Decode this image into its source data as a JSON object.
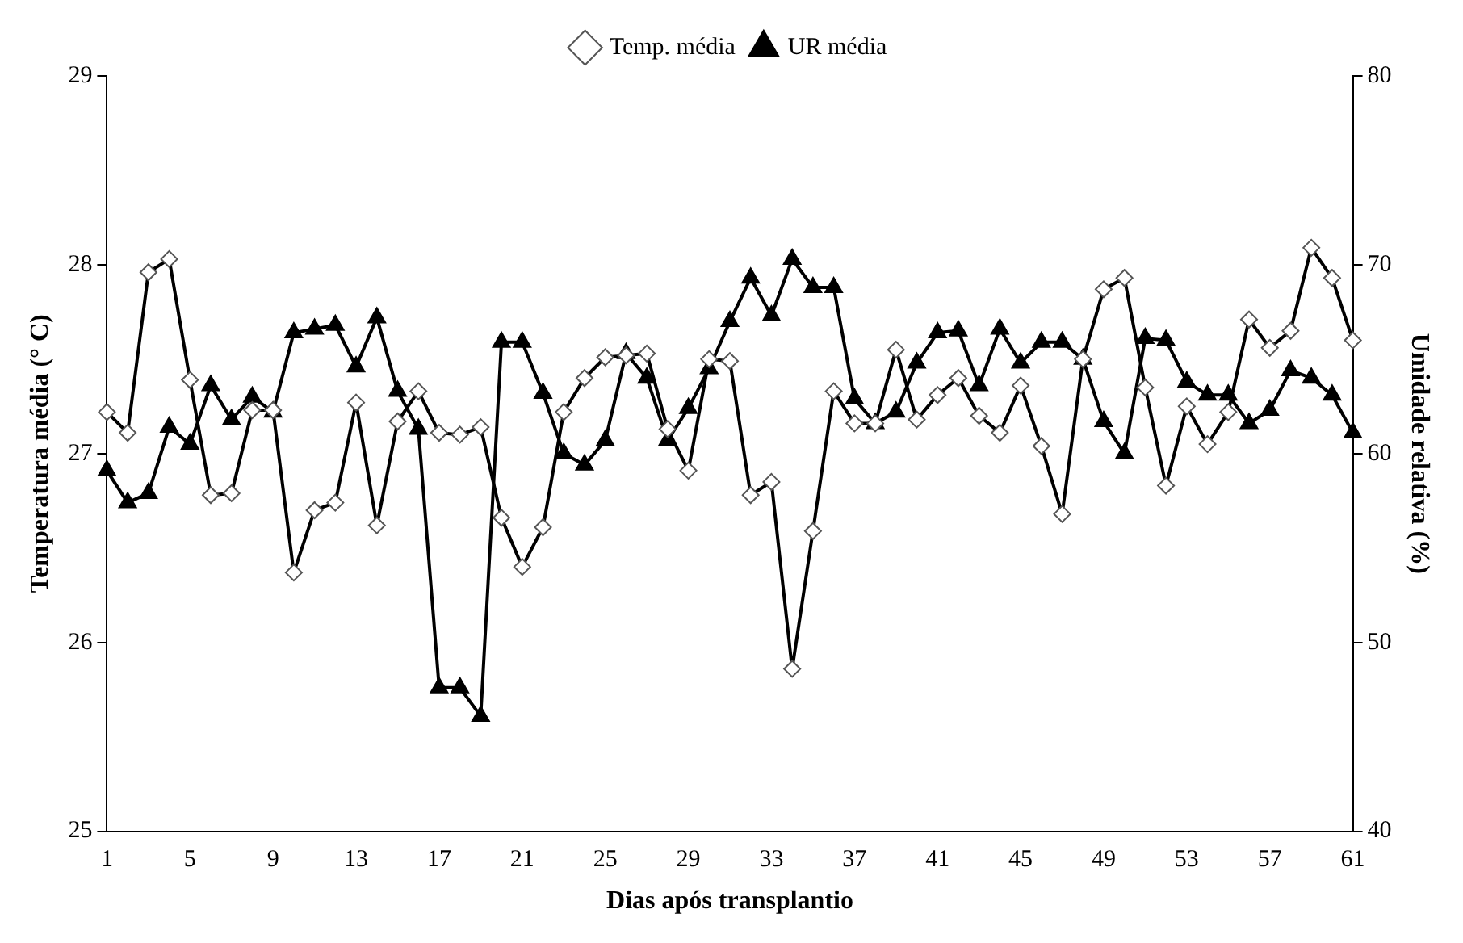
{
  "chart_data": {
    "type": "line",
    "xlabel": "Dias após transplantio",
    "ylabel": "Temperatura média (° C)",
    "y2label": "Umidade relativa (%)",
    "categories": [
      "1",
      null,
      null,
      null,
      "5",
      null,
      null,
      null,
      "9",
      null,
      null,
      null,
      "13",
      null,
      null,
      null,
      "17",
      null,
      null,
      null,
      "21",
      null,
      null,
      null,
      "25",
      null,
      null,
      null,
      "29",
      null,
      null,
      null,
      "33",
      null,
      null,
      null,
      "37",
      null,
      null,
      null,
      "41",
      null,
      null,
      null,
      "45",
      null,
      null,
      null,
      "49",
      null,
      null,
      null,
      "53",
      null,
      null,
      null,
      "57",
      null,
      null,
      null,
      "61"
    ],
    "series": [
      {
        "name": "Temp. média",
        "color": "#000000",
        "marker": "diamond",
        "values": [
          27.22,
          27.11,
          27.96,
          28.03,
          27.39,
          26.78,
          26.79,
          27.23,
          27.23,
          26.37,
          26.7,
          26.74,
          27.27,
          26.62,
          27.17,
          27.33,
          27.11,
          27.1,
          27.14,
          26.66,
          26.4,
          26.61,
          27.22,
          27.4,
          27.51,
          27.52,
          27.53,
          27.13,
          26.91,
          27.5,
          27.49,
          26.78,
          26.85,
          25.86,
          26.59,
          27.33,
          27.16,
          27.16,
          27.55,
          27.18,
          27.31,
          27.4,
          27.2,
          27.11,
          27.36,
          27.04,
          26.68,
          27.5,
          27.87,
          27.93,
          27.35,
          26.83,
          27.25,
          27.05,
          27.22,
          27.71,
          27.56,
          27.65,
          28.09,
          27.93,
          27.6
        ]
      },
      {
        "name": "UR média",
        "color": "#000000",
        "marker": "triangle",
        "axis": "y2",
        "values": [
          59.1,
          57.4,
          57.9,
          61.4,
          60.5,
          63.6,
          61.8,
          63,
          62.2,
          66.4,
          66.6,
          66.8,
          64.6,
          67.2,
          63.3,
          61.3,
          47.6,
          47.6,
          46.1,
          65.9,
          65.9,
          63.2,
          60,
          59.4,
          60.7,
          65.3,
          64,
          60.7,
          62.4,
          64.5,
          67,
          69.3,
          67.3,
          70.3,
          68.8,
          68.8,
          62.9,
          61.6,
          62.2,
          64.8,
          66.4,
          66.5,
          63.6,
          66.6,
          64.8,
          65.9,
          65.9,
          65,
          61.7,
          60,
          66.1,
          66,
          63.8,
          63.1,
          63.1,
          61.6,
          62.3,
          64.4,
          64,
          63.1,
          61.1
        ]
      }
    ],
    "ylim": [
      25,
      29
    ],
    "yticks": [
      25,
      26,
      27,
      28,
      29
    ],
    "y2lim": [
      40,
      80
    ],
    "y2ticks": [
      40,
      50,
      60,
      70,
      80
    ],
    "grid": false,
    "legend": "top",
    "line_style": "solid"
  }
}
